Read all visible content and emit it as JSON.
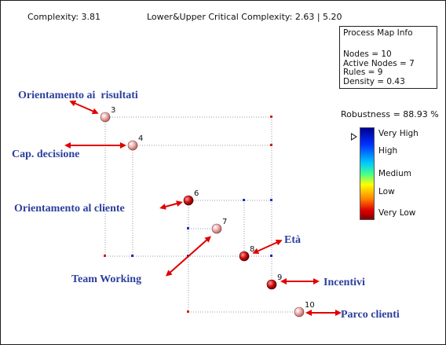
{
  "header": {
    "complexity": "Complexity: 3.81",
    "critical": "Lower&Upper Critical Complexity: 2.63 | 5.20"
  },
  "info": {
    "title": "Process Map Info",
    "nodes": "Nodes = 10",
    "active_nodes": "Active Nodes = 7",
    "rules": "Rules = 9",
    "density": "Density = 0.43"
  },
  "robustness": {
    "label": "Robustness = 88.93 %",
    "scale": [
      "Very High",
      "High",
      "Medium",
      "Low",
      "Very Low"
    ]
  },
  "nodes": [
    {
      "num": "3",
      "label": "Orientamento ai  risultati",
      "color": "#f0b0b0"
    },
    {
      "num": "4",
      "label": "Cap. decisione",
      "color": "#f0b0b0"
    },
    {
      "num": "6",
      "label": "Orientamento al cliente",
      "color": "#cc1010"
    },
    {
      "num": "7",
      "label": "Team Working",
      "color": "#f0b0b0"
    },
    {
      "num": "8",
      "label": "Età",
      "color": "#cc1010"
    },
    {
      "num": "9",
      "label": "Incentivi",
      "color": "#cc1010"
    },
    {
      "num": "10",
      "label": "Parco clienti",
      "color": "#f0b0b0"
    }
  ],
  "colors": {
    "arrow": "#e00000",
    "label_text": "#2b3f9c",
    "grid_line": "#999999"
  }
}
